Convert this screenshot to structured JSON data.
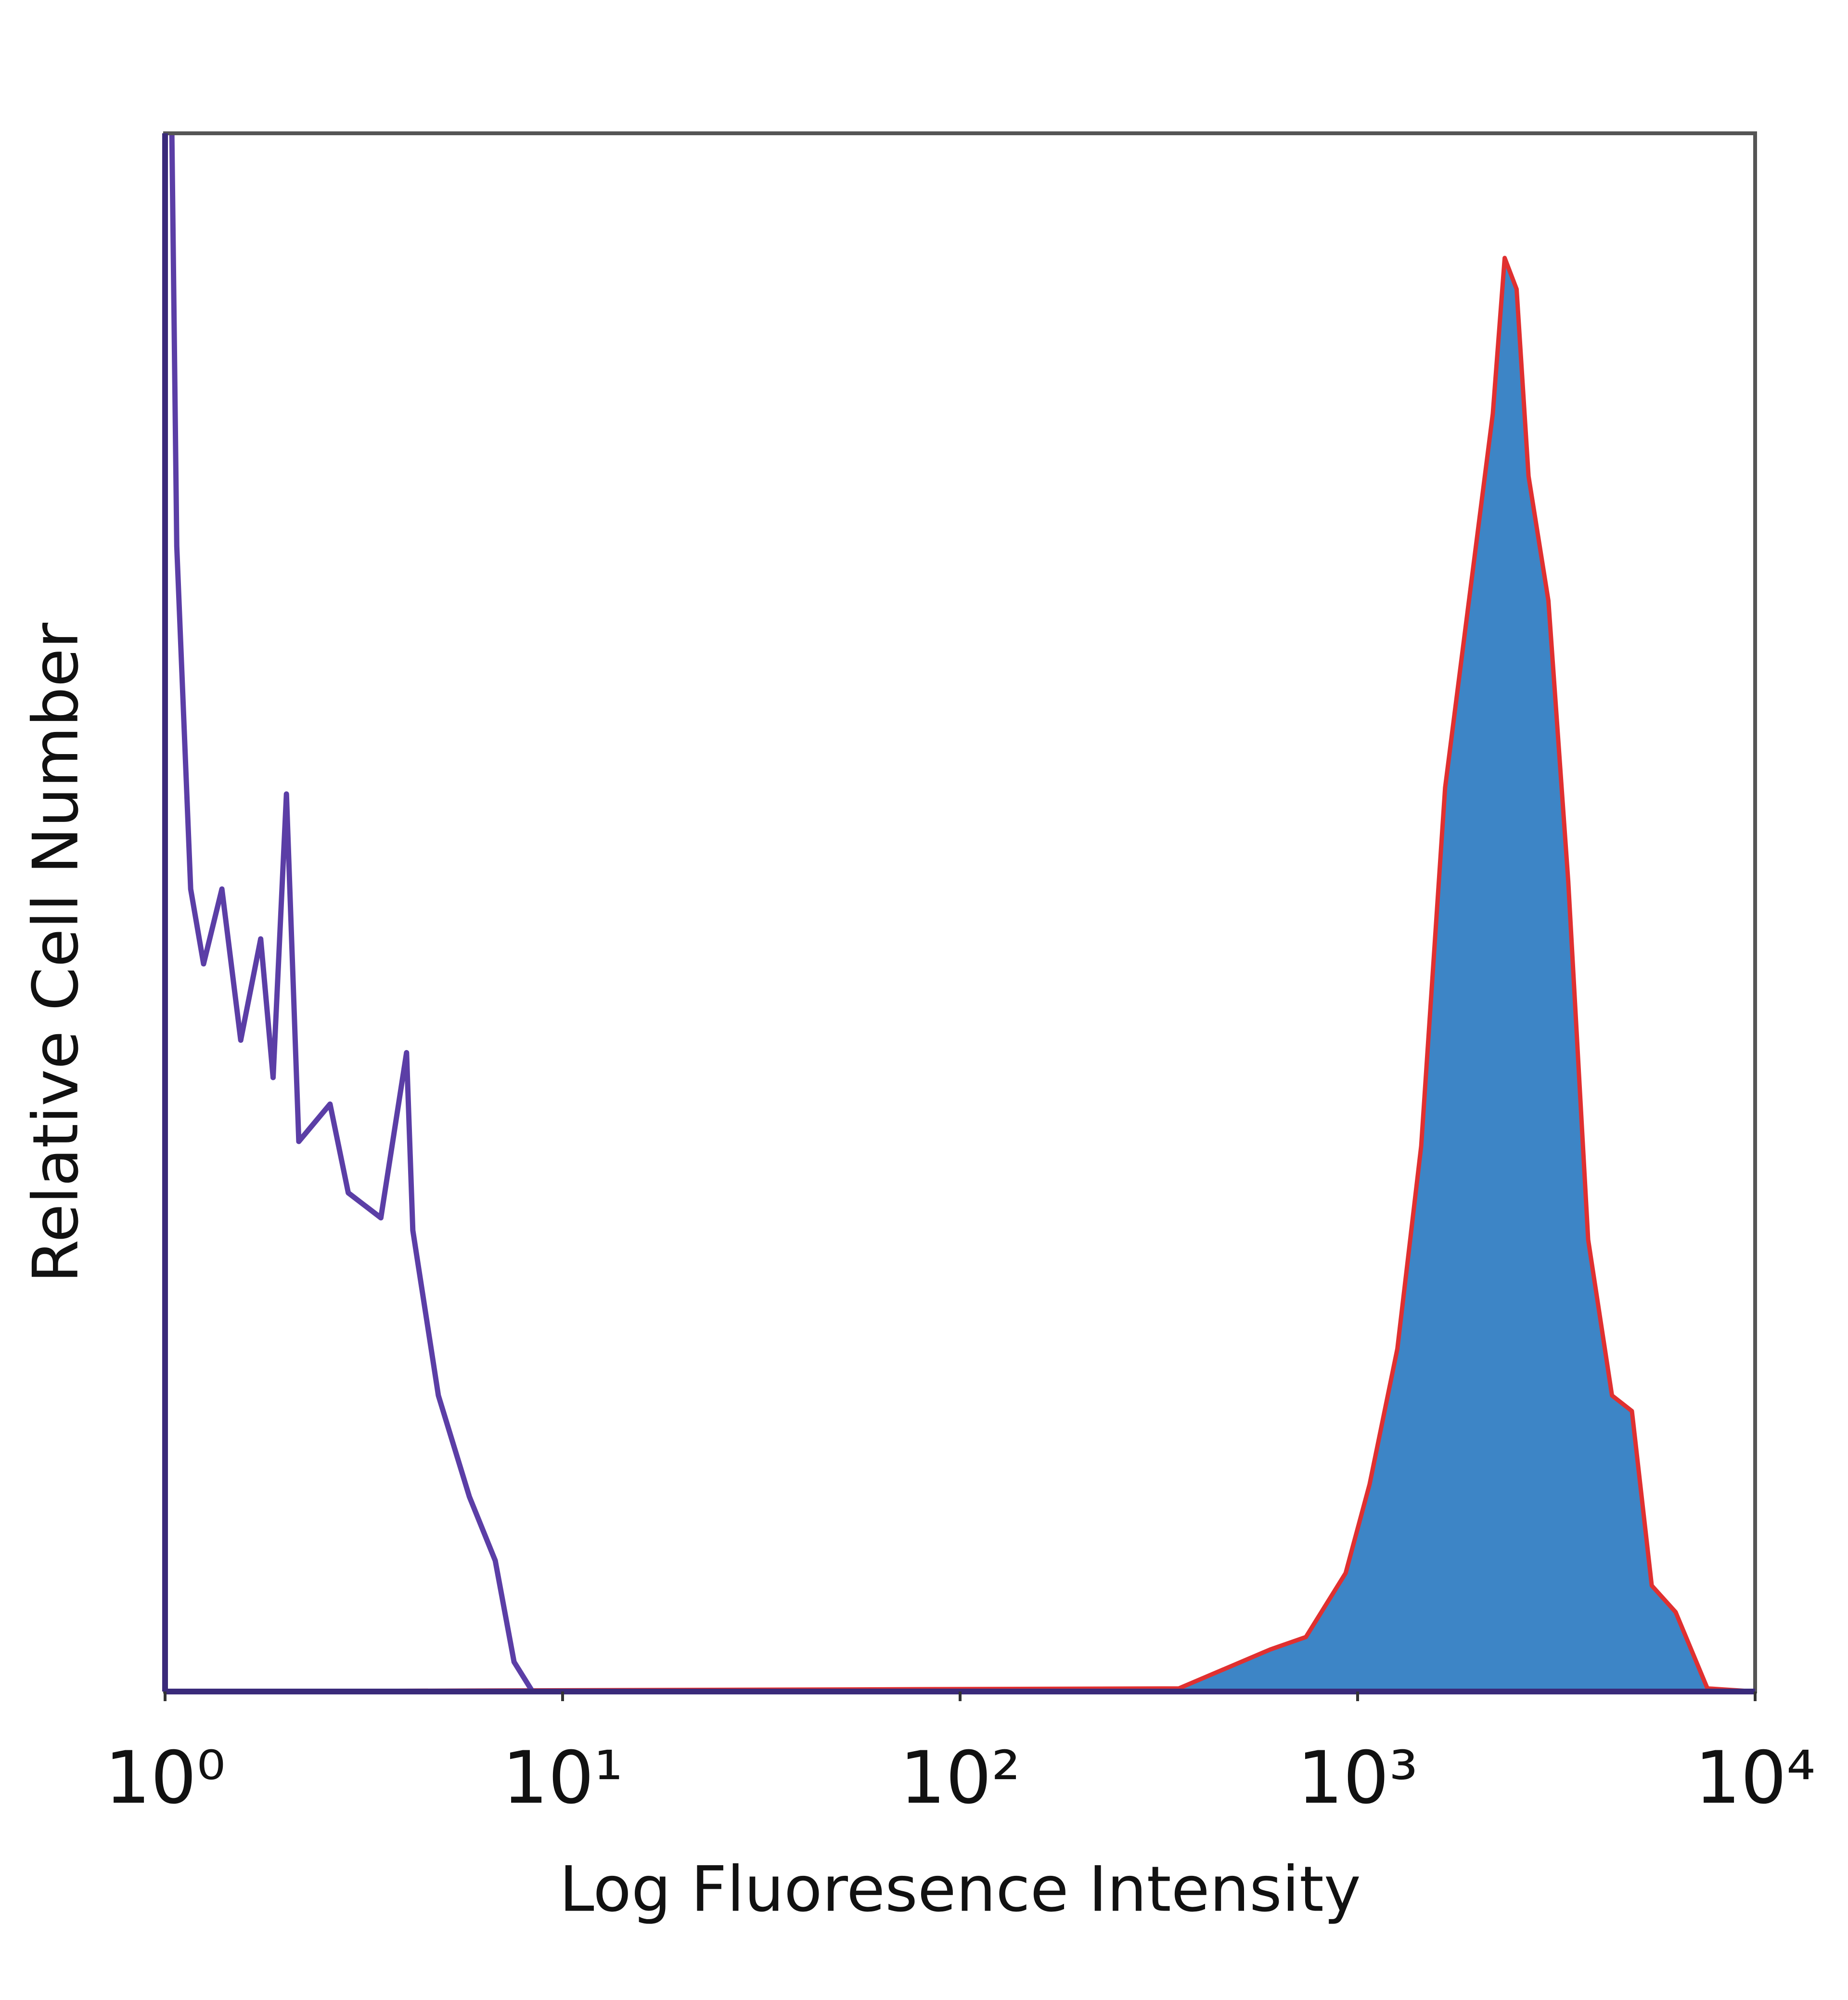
{
  "chart_data": {
    "type": "line",
    "x_label": "Log Fluoresence Intensity",
    "y_label": "Relative Cell Number",
    "xscale": "log",
    "xlim": [
      1,
      10000
    ],
    "xticks": [
      {
        "value": 1,
        "label": "10⁰"
      },
      {
        "value": 10,
        "label": "10¹"
      },
      {
        "value": 100,
        "label": "10²"
      },
      {
        "value": 1000,
        "label": "10³"
      },
      {
        "value": 10000,
        "label": "10⁴"
      }
    ],
    "ylim": [
      0,
      100
    ],
    "grid": false,
    "series": [
      {
        "color": "#3d85c6",
        "edge_color": "#e03030",
        "filled": true,
        "x": [
          1,
          355,
          603,
          741,
          933,
          1072,
          1259,
          1445,
          1660,
          1950,
          2188,
          2344,
          2512,
          2692,
          3020,
          3388,
          3802,
          4365,
          4898,
          5495,
          6310,
          7586,
          10000
        ],
        "values": [
          0,
          0.2,
          2.7,
          3.5,
          7.6,
          13.3,
          22,
          35,
          58,
          72,
          82,
          92,
          90,
          78,
          70,
          52,
          29,
          19,
          18,
          6.8,
          5.1,
          0.2,
          0
        ]
      },
      {
        "color": "#5b3ea6",
        "filled": false,
        "x": [
          1.04,
          1.07,
          1.16,
          1.25,
          1.39,
          1.55,
          1.74,
          1.87,
          2.02,
          2.17,
          2.6,
          2.89,
          3.49,
          4.05,
          4.2,
          4.87,
          5.83,
          6.77,
          7.55,
          8.4,
          10000
        ],
        "values": [
          100,
          73.5,
          51.5,
          46.7,
          51.5,
          41.8,
          48.3,
          39.4,
          57.6,
          35.3,
          37.7,
          32,
          30.4,
          41,
          29.6,
          19,
          12.5,
          8.4,
          1.9,
          0,
          0
        ]
      }
    ]
  }
}
